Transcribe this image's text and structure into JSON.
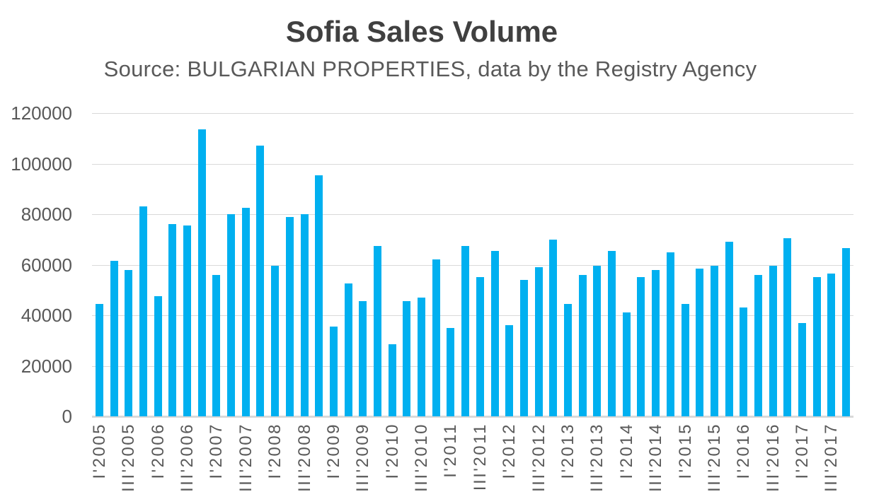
{
  "title": "Sofia Sales Volume",
  "subtitle": "Source: BULGARIAN PROPERTIES, data by the Registry Agency",
  "colors": {
    "bar": "#00B0F0",
    "gridline": "#D9D9D9",
    "axis_line": "#D9D9D9",
    "title_text": "#404040",
    "axis_text": "#595959"
  },
  "chart_data": {
    "type": "bar",
    "title": "Sofia Sales Volume",
    "subtitle": "Source: BULGARIAN PROPERTIES, data by the Registry Agency",
    "categories": [
      "I'2005",
      "II'2005",
      "III'2005",
      "IV'2005",
      "I'2006",
      "II'2006",
      "III'2006",
      "IV'2006",
      "I'2007",
      "II'2007",
      "III'2007",
      "IV'2007",
      "I'2008",
      "II'2008",
      "III'2008",
      "IV'2008",
      "I'2009",
      "II'2009",
      "III'2009",
      "IV'2009",
      "I'2010",
      "II'2010",
      "III'2010",
      "IV'2010",
      "I'2011",
      "II'2011",
      "III'2011",
      "IV'2011",
      "I'2012",
      "II'2012",
      "III'2012",
      "IV'2012",
      "I'2013",
      "II'2013",
      "III'2013",
      "IV'2013",
      "I'2014",
      "II'2014",
      "III'2014",
      "IV'2014",
      "I'2015",
      "II'2015",
      "III'2015",
      "IV'2015",
      "I'2016",
      "II'2016",
      "III'2016",
      "IV'2016",
      "I'2017",
      "II'2017",
      "III'2017",
      "IV'2017"
    ],
    "values": [
      44500,
      61500,
      58000,
      83000,
      47500,
      76000,
      75500,
      113500,
      56000,
      80000,
      82500,
      107000,
      59500,
      79000,
      80000,
      95500,
      35500,
      52500,
      45500,
      67500,
      28500,
      45500,
      47000,
      62000,
      35000,
      67500,
      55000,
      65500,
      36000,
      54000,
      59000,
      70000,
      44500,
      56000,
      59500,
      65500,
      41000,
      55000,
      58000,
      65000,
      44500,
      58500,
      59500,
      69000,
      43000,
      56000,
      59500,
      70500,
      37000,
      55000,
      56500,
      66500
    ],
    "x_tick_shown_every": 2,
    "ylim": [
      0,
      120000
    ],
    "ytick_step": 20000,
    "ytick_labels": [
      "0",
      "20000",
      "40000",
      "60000",
      "80000",
      "100000",
      "120000"
    ],
    "grid": true,
    "legend": false,
    "xlabel": "",
    "ylabel": ""
  }
}
